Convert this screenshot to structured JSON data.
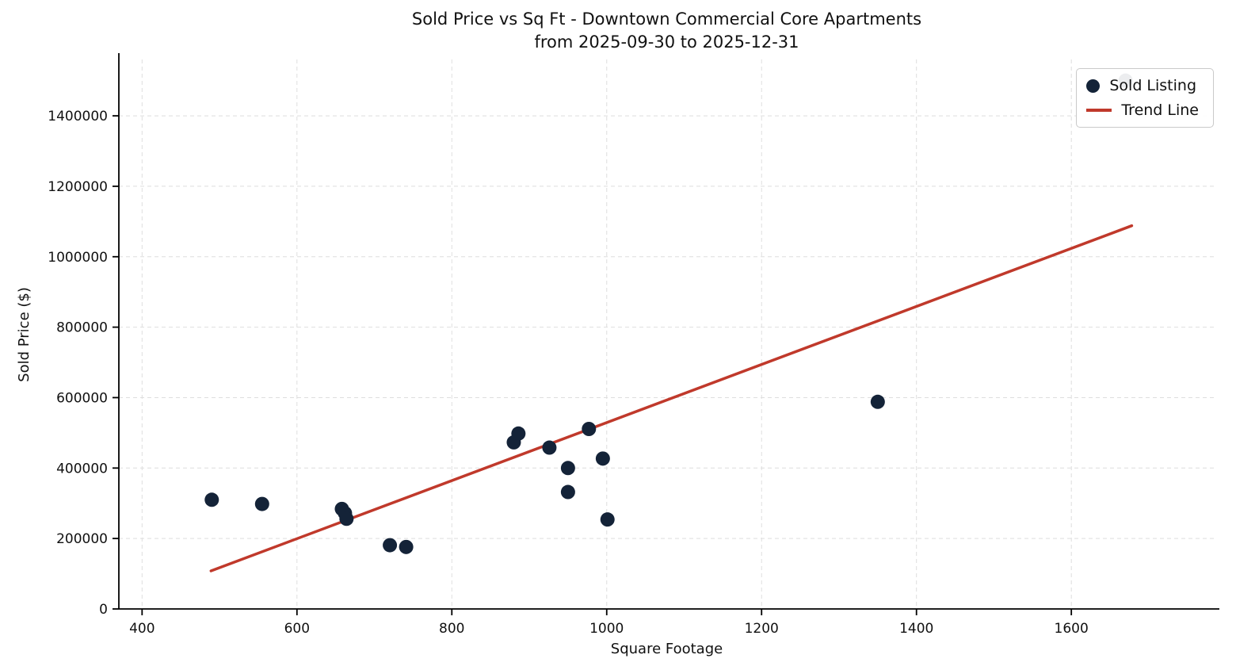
{
  "chart_data": {
    "type": "scatter",
    "title": "Sold Price vs Sq Ft - Downtown Commercial Core Apartments",
    "subtitle": "from 2025-09-30 to 2025-12-31",
    "xlabel": "Square Footage",
    "ylabel": "Sold Price ($)",
    "xlim": [
      370,
      1785
    ],
    "ylim": [
      0,
      1560000
    ],
    "xticks": [
      400,
      600,
      800,
      1000,
      1200,
      1400,
      1600
    ],
    "yticks": [
      0,
      200000,
      400000,
      600000,
      800000,
      1000000,
      1200000,
      1400000
    ],
    "grid": true,
    "colors": {
      "scatter": "#142338",
      "trend": "#c0392b",
      "gridline": "#dedede",
      "axis": "#000000"
    },
    "legend": {
      "position": "upper right",
      "entries": [
        {
          "label": "Sold Listing",
          "type": "point",
          "color": "#142338"
        },
        {
          "label": "Trend Line",
          "type": "line",
          "color": "#c0392b"
        }
      ]
    },
    "series": [
      {
        "name": "Trend Line",
        "type": "line",
        "color": "#c0392b",
        "points": [
          [
            489,
            108000
          ],
          [
            1678,
            1088000
          ]
        ]
      },
      {
        "name": "Sold Listing",
        "type": "scatter",
        "color": "#142338",
        "points": [
          [
            490,
            310000
          ],
          [
            555,
            298000
          ],
          [
            658,
            284000
          ],
          [
            662,
            272000
          ],
          [
            664,
            256000
          ],
          [
            720,
            181000
          ],
          [
            741,
            176000
          ],
          [
            880,
            473000
          ],
          [
            886,
            498000
          ],
          [
            926,
            458000
          ],
          [
            950,
            400000
          ],
          [
            950,
            332000
          ],
          [
            977,
            511000
          ],
          [
            995,
            427000
          ],
          [
            1001,
            254000
          ],
          [
            1350,
            588000
          ],
          [
            1670,
            1500000
          ]
        ]
      }
    ]
  }
}
